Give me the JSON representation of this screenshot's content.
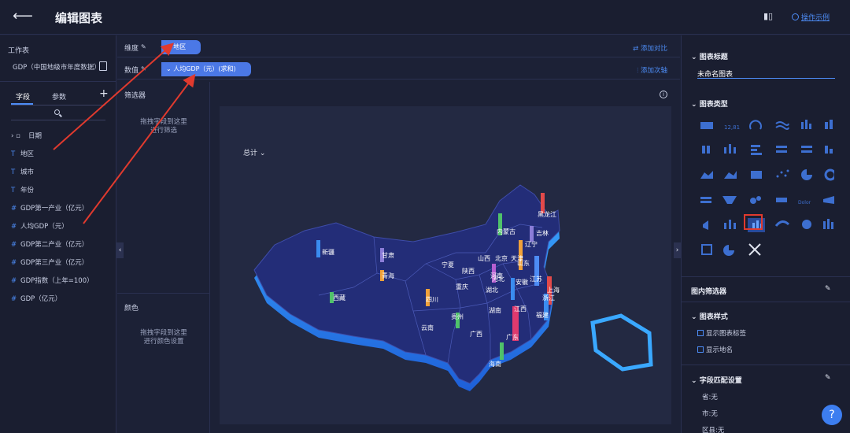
{
  "header": {
    "back_icon": "arrow-left-icon",
    "title": "编辑图表",
    "help_link": "操作示例"
  },
  "sidebar": {
    "workspace_label": "工作表",
    "dataset_name": "GDP（中国地级市年度数据）",
    "tabs": [
      "字段",
      "参数"
    ],
    "fields": [
      {
        "kind": "date",
        "label": "日期"
      },
      {
        "kind": "text",
        "label": "地区"
      },
      {
        "kind": "text",
        "label": "城市"
      },
      {
        "kind": "text",
        "label": "年份"
      },
      {
        "kind": "number",
        "label": "GDP第一产业（亿元）"
      },
      {
        "kind": "number",
        "label": "人均GDP（元）"
      },
      {
        "kind": "number",
        "label": "GDP第二产业（亿元）"
      },
      {
        "kind": "number",
        "label": "GDP第三产业（亿元）"
      },
      {
        "kind": "number",
        "label": "GDP指数（上年=100）"
      },
      {
        "kind": "number",
        "label": "GDP（亿元）"
      }
    ]
  },
  "editor": {
    "dimension_label": "维度",
    "dimension_value": "地区",
    "dimension_action": "添加对比",
    "value_label": "数值",
    "value_value": "人均GDP（元）(求和)",
    "value_action": "添加次轴",
    "filter_title": "筛选器",
    "filter_hint_1": "拖拽字段到这里",
    "filter_hint_2": "进行筛选",
    "color_title": "颜色",
    "color_hint_1": "拖拽字段到这里",
    "color_hint_2": "进行颜色设置",
    "sum_label": "总计"
  },
  "map": {
    "provinces": [
      "新疆",
      "西藏",
      "青海",
      "甘肃",
      "内蒙古",
      "黑龙江",
      "吉林",
      "辽宁",
      "宁夏",
      "陕西",
      "山西",
      "北京",
      "天津",
      "河北",
      "山东",
      "河南",
      "江苏",
      "安徽",
      "湖北",
      "四川",
      "重庆",
      "贵州",
      "云南",
      "广西",
      "广东",
      "湖南",
      "江西",
      "浙江",
      "福建",
      "海南",
      "上海"
    ]
  },
  "settings": {
    "chart_title_section": "图表标题",
    "chart_title_value": "未命名图表",
    "chart_type_section": "图表类型",
    "inner_filter_section": "图内筛选器",
    "style_section": "图表样式",
    "show_label": "显示图表标签",
    "show_place": "显示地名",
    "field_map_section": "字段匹配设置",
    "province_row": "省:无",
    "city_row": "市:无",
    "district_row": "区县:无"
  },
  "colors": {
    "accent": "#4d8cf5",
    "selection": "#e03a2e",
    "map_fill": "#232d78"
  }
}
